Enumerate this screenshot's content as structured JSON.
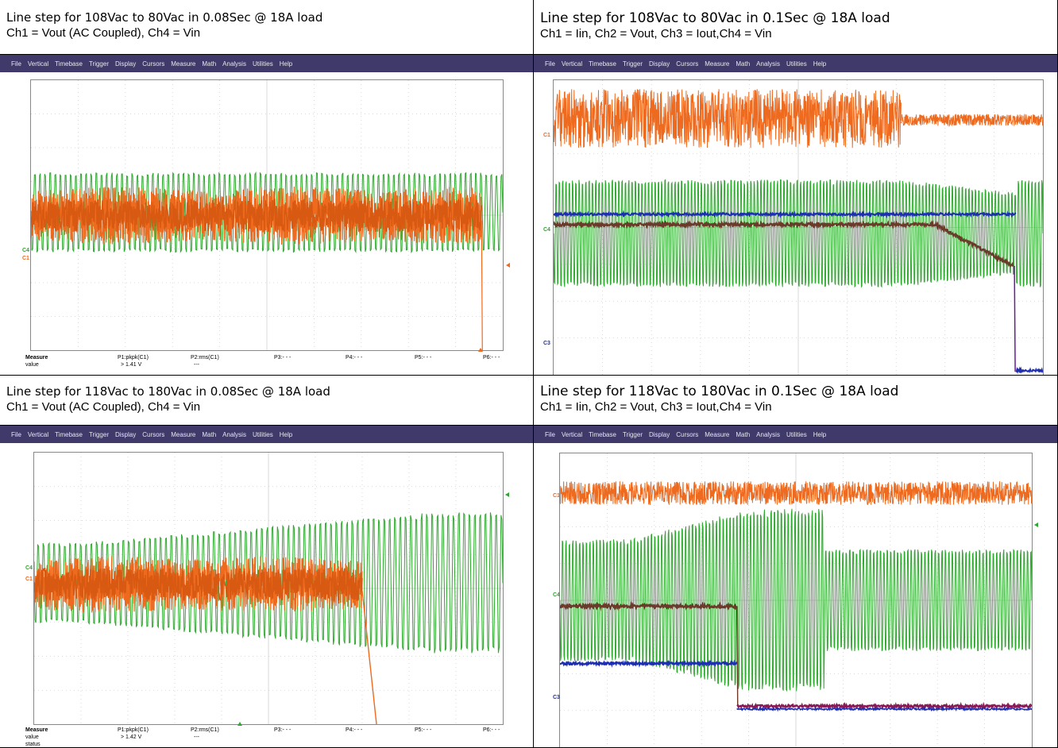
{
  "menu": [
    "File",
    "Vertical",
    "Timebase",
    "Trigger",
    "Display",
    "Cursors",
    "Measure",
    "Math",
    "Analysis",
    "Utilities",
    "Help"
  ],
  "colors": {
    "ch1": "#ee6a1e",
    "ch4": "#2ea82e",
    "ch2": "#6b3a2a",
    "ch3": "#1d2fb0",
    "ch3b": "#8a1a55",
    "menubar": "#3f3a6a"
  },
  "panels": [
    {
      "title": "Line step for 108Vac to 80Vac in 0.08Sec @ 18A load",
      "subtitle": "Ch1 = Vout (AC Coupled), Ch4 = Vin",
      "labels": [
        "C4",
        "C1"
      ],
      "measure": {
        "heading": "Measure",
        "row_label": "value",
        "row3_label": "",
        "params": [
          "P1:pkpk(C1)",
          "P2:rms(C1)",
          "P3:- - -",
          "P4:- - -",
          "P5:- - -",
          "P6:- - -"
        ],
        "values": [
          "> 1.41 V",
          "---",
          "",
          "",
          "",
          ""
        ],
        "status": [
          "",
          "",
          "",
          "",
          "",
          ""
        ]
      },
      "chart_data": {
        "type": "line",
        "series": [
          {
            "color": "#ee6a1e",
            "description_values": "Ch1 ripple band ends at step"
          },
          {
            "color": "#2ea82e",
            "description_values": "Ch4 AC input sine"
          }
        ]
      }
    },
    {
      "title": "Line step for 108Vac to 80Vac in 0.1Sec @ 18A load",
      "subtitle": "Ch1 = Iin, Ch2 = Vout, Ch3 = Iout,Ch4 = Vin",
      "labels": [
        "C1",
        "C4",
        "C3"
      ],
      "chart_data": {
        "type": "line",
        "series": [
          {
            "color": "#ee6a1e"
          },
          {
            "color": "#2ea82e"
          },
          {
            "color": "#6b3a2a"
          },
          {
            "color": "#1d2fb0"
          }
        ]
      }
    },
    {
      "title": "Line step for 118Vac to 180Vac in 0.08Sec @ 18A load",
      "subtitle": "Ch1 = Vout (AC Coupled), Ch4 = Vin",
      "labels": [
        "C4",
        "C1"
      ],
      "measure": {
        "heading": "Measure",
        "row_label": "value",
        "row3_label": "status",
        "params": [
          "P1:pkpk(C1)",
          "P2:rms(C1)",
          "P3:- - -",
          "P4:- - -",
          "P5:- - -",
          "P6:- - -"
        ],
        "values": [
          "> 1.42 V",
          "---",
          "",
          "",
          "",
          ""
        ],
        "status": [
          "",
          "",
          "",
          "",
          "",
          ""
        ]
      },
      "chart_data": {
        "type": "line",
        "series": [
          {
            "color": "#ee6a1e"
          },
          {
            "color": "#2ea82e"
          }
        ]
      }
    },
    {
      "title": "Line step for 118Vac to 180Vac in 0.1Sec @ 18A load",
      "subtitle": "Ch1 = Iin, Ch2 = Vout, Ch3 = Iout,Ch4 = Vin",
      "labels": [
        "C1",
        "C4",
        "C3"
      ],
      "chart_data": {
        "type": "line",
        "series": [
          {
            "color": "#ee6a1e"
          },
          {
            "color": "#2ea82e"
          },
          {
            "color": "#6b3a2a"
          },
          {
            "color": "#1d2fb0"
          }
        ]
      }
    }
  ]
}
